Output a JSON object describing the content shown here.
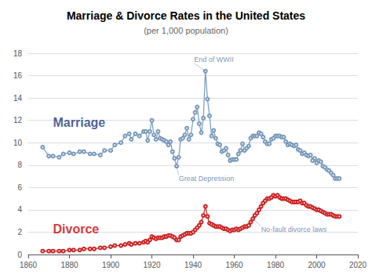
{
  "chart_data": {
    "type": "line",
    "title": "Marriage & Divorce Rates in the United States",
    "subtitle": "(per 1,000 population)",
    "x": [
      1867,
      1870,
      1872,
      1875,
      1877,
      1880,
      1882,
      1885,
      1887,
      1890,
      1892,
      1895,
      1897,
      1900,
      1902,
      1905,
      1907,
      1909,
      1910,
      1912,
      1914,
      1916,
      1917,
      1918,
      1919,
      1920,
      1921,
      1922,
      1923,
      1924,
      1925,
      1926,
      1927,
      1928,
      1929,
      1930,
      1931,
      1932,
      1933,
      1934,
      1935,
      1936,
      1937,
      1938,
      1939,
      1940,
      1941,
      1942,
      1943,
      1944,
      1945,
      1946,
      1947,
      1948,
      1949,
      1950,
      1951,
      1952,
      1953,
      1954,
      1955,
      1956,
      1957,
      1958,
      1959,
      1960,
      1961,
      1962,
      1963,
      1964,
      1965,
      1966,
      1967,
      1968,
      1969,
      1970,
      1971,
      1972,
      1973,
      1974,
      1975,
      1976,
      1977,
      1978,
      1979,
      1980,
      1981,
      1982,
      1983,
      1984,
      1985,
      1986,
      1987,
      1988,
      1989,
      1990,
      1991,
      1992,
      1993,
      1994,
      1995,
      1996,
      1997,
      1998,
      1999,
      2000,
      2001,
      2002,
      2003,
      2004,
      2005,
      2006,
      2007,
      2008,
      2009,
      2010,
      2011
    ],
    "series": [
      {
        "name": "Marriage",
        "color": "#7799bb",
        "marker": "circle",
        "values": [
          9.6,
          8.8,
          8.8,
          8.7,
          9.0,
          9.1,
          9.0,
          9.2,
          9.2,
          9.0,
          9.0,
          8.9,
          9.3,
          9.3,
          9.8,
          10.0,
          10.6,
          10.8,
          10.3,
          10.8,
          10.6,
          11.0,
          11.0,
          10.2,
          11.0,
          12.0,
          10.7,
          10.3,
          11.0,
          10.4,
          10.3,
          10.2,
          10.1,
          9.8,
          10.1,
          9.2,
          8.6,
          7.9,
          8.7,
          10.3,
          10.4,
          10.7,
          11.3,
          10.3,
          10.7,
          12.1,
          12.7,
          13.2,
          11.7,
          10.9,
          12.2,
          16.4,
          13.9,
          12.4,
          10.6,
          11.1,
          10.4,
          9.9,
          9.8,
          9.2,
          9.3,
          9.5,
          8.9,
          8.4,
          8.5,
          8.5,
          8.5,
          9.0,
          9.3,
          9.9,
          9.3,
          9.5,
          9.7,
          10.4,
          10.6,
          10.6,
          10.6,
          10.9,
          10.8,
          10.5,
          10.1,
          9.9,
          9.9,
          10.3,
          10.4,
          10.6,
          10.6,
          10.6,
          10.5,
          10.5,
          10.1,
          9.8,
          9.9,
          9.8,
          9.7,
          9.8,
          9.4,
          9.3,
          9.0,
          9.1,
          8.9,
          8.8,
          8.9,
          8.4,
          8.6,
          8.2,
          8.4,
          8.3,
          7.9,
          7.8,
          7.6,
          7.5,
          7.3,
          7.1,
          6.8,
          6.8,
          6.8
        ]
      },
      {
        "name": "Divorce",
        "color": "#cc2222",
        "marker": "circle",
        "values": [
          0.3,
          0.3,
          0.3,
          0.3,
          0.3,
          0.4,
          0.4,
          0.4,
          0.5,
          0.5,
          0.5,
          0.6,
          0.6,
          0.7,
          0.8,
          0.8,
          0.9,
          1.0,
          0.9,
          1.0,
          1.0,
          1.1,
          1.2,
          1.1,
          1.3,
          1.6,
          1.5,
          1.4,
          1.5,
          1.5,
          1.5,
          1.6,
          1.6,
          1.7,
          1.7,
          1.6,
          1.5,
          1.3,
          1.3,
          1.6,
          1.7,
          1.8,
          1.9,
          1.9,
          1.9,
          2.0,
          2.2,
          2.4,
          2.6,
          2.9,
          3.5,
          4.3,
          3.4,
          2.8,
          2.7,
          2.6,
          2.5,
          2.5,
          2.5,
          2.4,
          2.3,
          2.3,
          2.2,
          2.1,
          2.2,
          2.2,
          2.3,
          2.2,
          2.3,
          2.4,
          2.5,
          2.5,
          2.6,
          2.9,
          3.2,
          3.5,
          3.7,
          4.0,
          4.3,
          4.6,
          4.8,
          5.0,
          5.0,
          5.1,
          5.3,
          5.2,
          5.3,
          5.1,
          5.0,
          5.0,
          5.0,
          4.9,
          4.8,
          4.7,
          4.7,
          4.7,
          4.7,
          4.8,
          4.6,
          4.6,
          4.4,
          4.3,
          4.3,
          4.2,
          4.1,
          4.0,
          4.0,
          3.9,
          3.8,
          3.7,
          3.6,
          3.6,
          3.6,
          3.5,
          3.4,
          3.4,
          3.4
        ]
      }
    ],
    "annotations": [
      {
        "text": "Marriage",
        "x": 1872,
        "y": 11.8,
        "color": "#1a3a7a"
      },
      {
        "text": "Divorce",
        "x": 1872,
        "y": 2.3,
        "color": "#cc0000"
      },
      {
        "text": "End of WWII",
        "x": 1946,
        "y": 16.4,
        "text_x": 1940.5,
        "text_y": 17.1,
        "color": "#5577aa"
      },
      {
        "text": "Great Depression",
        "x": 1932,
        "y": 7.9,
        "text_x": 1933,
        "text_y": 7.1,
        "color": "#5577aa"
      },
      {
        "text": "No-fault divorce laws",
        "x": 1969,
        "y": 3.2,
        "text_x": 1973,
        "text_y": 2.55,
        "color": "#5577aa"
      }
    ],
    "xlim": [
      1860,
      2020
    ],
    "xticks": [
      1860,
      1880,
      1900,
      1920,
      1940,
      1960,
      1980,
      2000,
      2020
    ],
    "ylim": [
      0,
      18
    ],
    "yticks": [
      0,
      2,
      4,
      6,
      8,
      10,
      12,
      14,
      16,
      18
    ],
    "grid": true
  }
}
